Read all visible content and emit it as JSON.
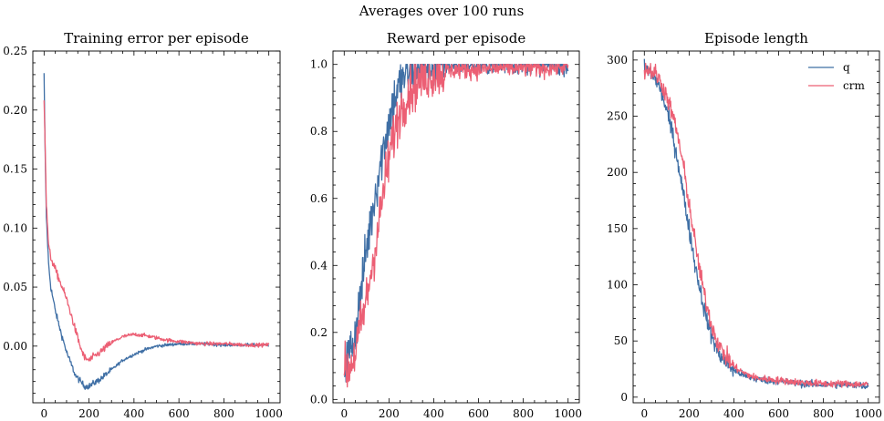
{
  "suptitle": "Averages over 100 runs",
  "colors": {
    "q": "#3f6fa5",
    "crm": "#ec5f74"
  },
  "chart_data": [
    {
      "type": "line",
      "title": "Training error per episode",
      "xlim": [
        -50,
        1050
      ],
      "ylim": [
        -0.048,
        0.25
      ],
      "xticks": [
        0,
        200,
        400,
        600,
        800,
        1000
      ],
      "yticks": [
        0.0,
        0.05,
        0.1,
        0.15,
        0.2,
        0.25
      ],
      "ytick_labels": [
        "0.00",
        "0.05",
        "0.10",
        "0.15",
        "0.20",
        "0.25"
      ],
      "legend": false,
      "series": [
        {
          "key": "q",
          "noise": 0.0025,
          "x": [
            0,
            5,
            10,
            20,
            30,
            50,
            70,
            100,
            140,
            180,
            200,
            250,
            300,
            350,
            400,
            450,
            500,
            550,
            600,
            700,
            800,
            900,
            1000
          ],
          "y": [
            0.23,
            0.16,
            0.11,
            0.07,
            0.05,
            0.03,
            0.015,
            -0.005,
            -0.025,
            -0.034,
            -0.034,
            -0.028,
            -0.02,
            -0.012,
            -0.007,
            -0.003,
            0.0,
            0.001,
            0.002,
            0.002,
            0.001,
            0.001,
            0.001
          ]
        },
        {
          "key": "crm",
          "noise": 0.003,
          "x": [
            0,
            5,
            10,
            20,
            30,
            50,
            70,
            100,
            130,
            160,
            180,
            200,
            250,
            300,
            350,
            400,
            450,
            500,
            550,
            600,
            700,
            800,
            900,
            1000
          ],
          "y": [
            0.21,
            0.17,
            0.12,
            0.085,
            0.075,
            0.065,
            0.055,
            0.04,
            0.02,
            0.0,
            -0.01,
            -0.012,
            -0.005,
            0.003,
            0.008,
            0.01,
            0.009,
            0.007,
            0.005,
            0.004,
            0.002,
            0.002,
            0.001,
            0.001
          ]
        }
      ]
    },
    {
      "type": "line",
      "title": "Reward per episode",
      "xlim": [
        -50,
        1050
      ],
      "ylim": [
        -0.01,
        1.04
      ],
      "xticks": [
        0,
        200,
        400,
        600,
        800,
        1000
      ],
      "yticks": [
        0.0,
        0.2,
        0.4,
        0.6,
        0.8,
        1.0
      ],
      "ytick_labels": [
        "0.0",
        "0.2",
        "0.4",
        "0.6",
        "0.8",
        "1.0"
      ],
      "legend": false,
      "series": [
        {
          "key": "q",
          "noise": 0.045,
          "x": [
            0,
            25,
            50,
            75,
            100,
            125,
            150,
            175,
            200,
            225,
            250,
            275,
            300,
            350,
            400,
            500,
            600,
            700,
            800,
            900,
            1000
          ],
          "y": [
            0.1,
            0.14,
            0.2,
            0.32,
            0.45,
            0.56,
            0.66,
            0.75,
            0.83,
            0.9,
            0.94,
            0.97,
            0.985,
            0.995,
            0.998,
            0.999,
            0.999,
            0.999,
            0.999,
            0.999,
            0.999
          ]
        },
        {
          "key": "crm",
          "noise": 0.045,
          "x": [
            0,
            25,
            50,
            75,
            100,
            125,
            150,
            175,
            200,
            225,
            250,
            275,
            300,
            350,
            400,
            450,
            500,
            600,
            700,
            800,
            900,
            1000
          ],
          "y": [
            0.08,
            0.1,
            0.14,
            0.22,
            0.3,
            0.4,
            0.5,
            0.62,
            0.72,
            0.8,
            0.86,
            0.9,
            0.93,
            0.96,
            0.975,
            0.98,
            0.985,
            0.985,
            0.99,
            0.99,
            0.99,
            0.995
          ]
        }
      ]
    },
    {
      "type": "line",
      "title": "Episode length",
      "xlim": [
        -50,
        1050
      ],
      "ylim": [
        -5,
        308
      ],
      "xticks": [
        0,
        200,
        400,
        600,
        800,
        1000
      ],
      "yticks": [
        0,
        50,
        100,
        150,
        200,
        250,
        300
      ],
      "ytick_labels": [
        "0",
        "50",
        "100",
        "150",
        "200",
        "250",
        "300"
      ],
      "legend": true,
      "legend_position": "top-right",
      "series": [
        {
          "key": "q",
          "name": "q",
          "noise": 6,
          "x": [
            0,
            25,
            50,
            75,
            100,
            125,
            150,
            175,
            200,
            225,
            250,
            275,
            300,
            325,
            350,
            400,
            450,
            500,
            600,
            700,
            800,
            900,
            1000
          ],
          "y": [
            292,
            290,
            284,
            272,
            255,
            235,
            210,
            180,
            150,
            120,
            95,
            72,
            55,
            42,
            34,
            24,
            19,
            16,
            14,
            12,
            11,
            11,
            10
          ]
        },
        {
          "key": "crm",
          "name": "crm",
          "noise": 6,
          "x": [
            0,
            25,
            50,
            75,
            100,
            125,
            150,
            175,
            200,
            225,
            250,
            275,
            300,
            325,
            350,
            400,
            450,
            500,
            600,
            700,
            800,
            900,
            1000
          ],
          "y": [
            292,
            291,
            288,
            280,
            268,
            252,
            232,
            205,
            172,
            140,
            110,
            85,
            65,
            50,
            40,
            27,
            21,
            17,
            15,
            13,
            12,
            12,
            11
          ]
        }
      ]
    }
  ]
}
